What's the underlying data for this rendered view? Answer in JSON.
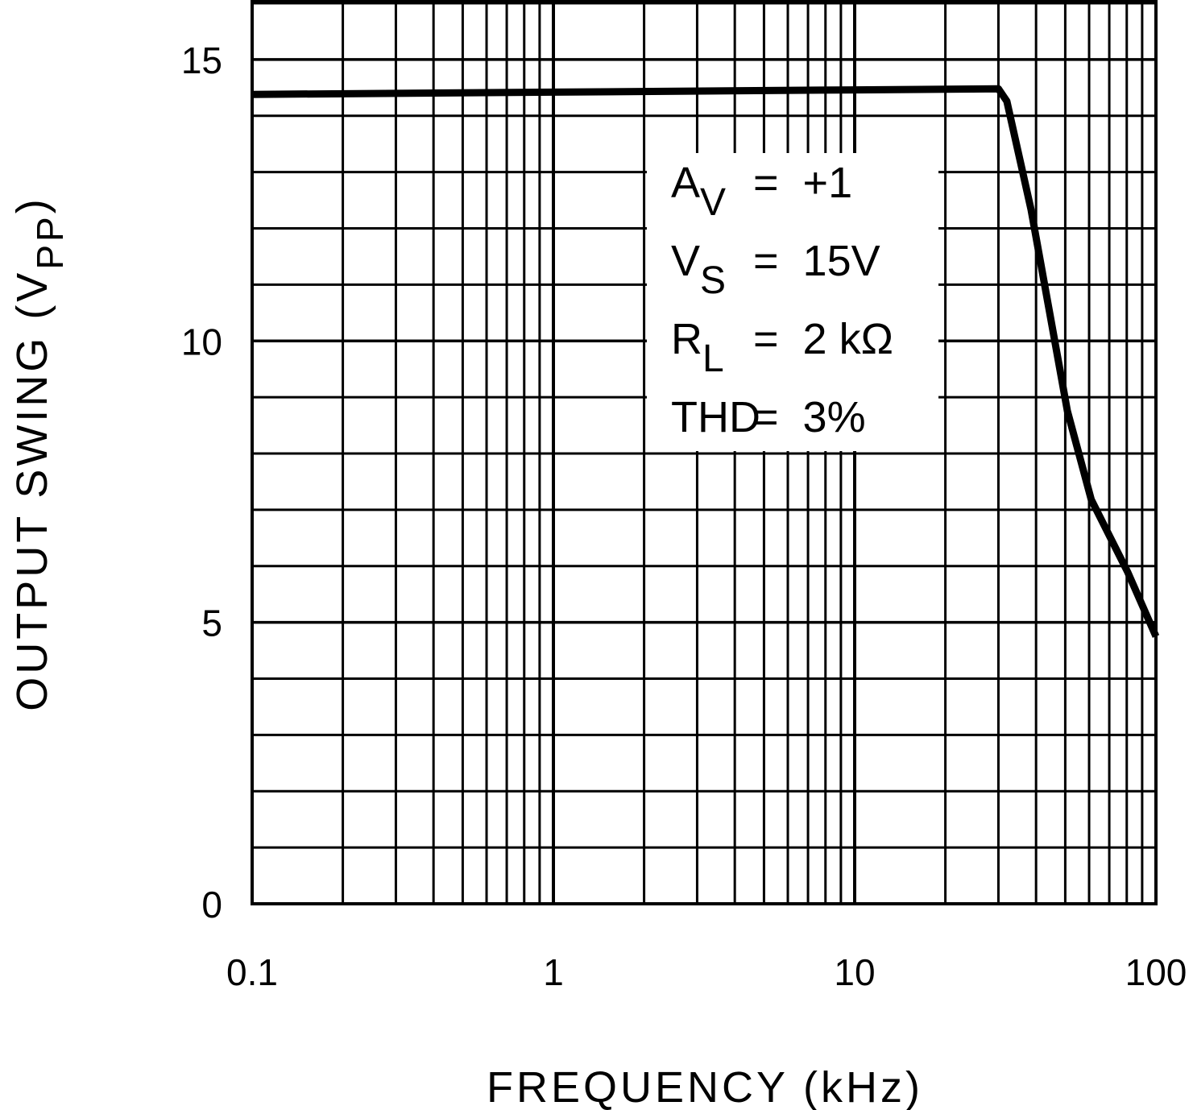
{
  "chart_data": {
    "type": "line",
    "xlabel": "FREQUENCY (kHz)",
    "ylabel": {
      "text": "OUTPUT SWING (V",
      "sub": "PP",
      "end": ")"
    },
    "x": [
      0.1,
      1,
      10,
      30,
      32,
      38.5,
      50.8,
      61,
      80.6,
      100
    ],
    "values": [
      14.38,
      14.42,
      14.46,
      14.48,
      14.26,
      12.33,
      8.76,
      7.18,
      5.89,
      4.75
    ],
    "color": "#000000",
    "xscale": "log",
    "xlim": [
      0.1,
      100
    ],
    "xticks": [
      0.1,
      1,
      10,
      100
    ],
    "x_minor_ticks": [
      0.2,
      0.3,
      0.4,
      0.5,
      0.6,
      0.7,
      0.8,
      0.9,
      2,
      3,
      4,
      5,
      6,
      7,
      8,
      9,
      20,
      30,
      40,
      50,
      60,
      70,
      80,
      90
    ],
    "ylim": [
      0,
      16
    ],
    "yticks": [
      0,
      5,
      10,
      15
    ],
    "y_minor_ticks": [
      1,
      2,
      3,
      4,
      6,
      7,
      8,
      9,
      11,
      12,
      13,
      14,
      16
    ],
    "grid": true,
    "annotations": [
      {
        "main": "A",
        "sub": "V",
        "rest": "=  +1"
      },
      {
        "main": "V",
        "sub": "S",
        "rest": "=  15V"
      },
      {
        "main": "R",
        "sub": "L",
        "rest": "=  2 kΩ"
      },
      {
        "main": "THD",
        "sub": "",
        "rest": "=  3%"
      }
    ]
  }
}
